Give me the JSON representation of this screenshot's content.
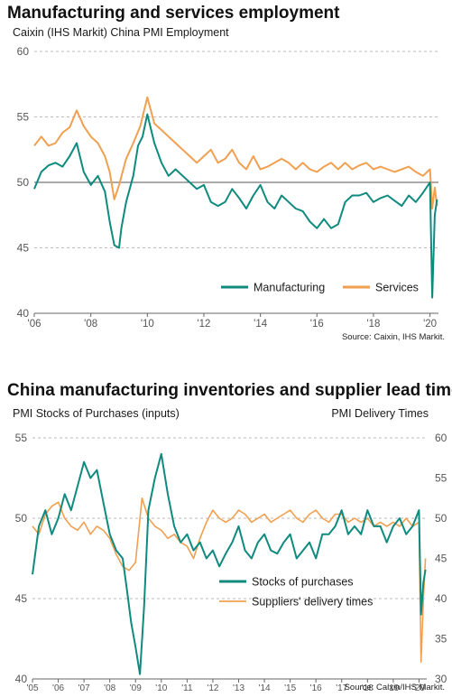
{
  "charts": [
    {
      "title": "Manufacturing and services employment",
      "subtitle": "Caixin (IHS Markit) China PMI Employment",
      "source": "Source: Caixin, IHS Markit.",
      "colors": {
        "manufacturing": "#0f8a7e",
        "services": "#f0a050",
        "grid": "#bbbbbb",
        "axis": "#666666"
      }
    },
    {
      "title": "China manufacturing inventories and supplier lead times",
      "left_axis_label": "PMI Stocks of Purchases (inputs)",
      "right_axis_label": "PMI Delivery Times",
      "source": "Source: Caixin/IHS Markit.",
      "colors": {
        "stocks": "#0f8a7e",
        "delivery": "#f0a050",
        "grid": "#bbbbbb",
        "axis": "#666666"
      }
    }
  ],
  "chart_data": [
    {
      "type": "line",
      "title": "Manufacturing and services employment",
      "ylim": [
        40,
        60
      ],
      "yticks": [
        40,
        45,
        50,
        55,
        60
      ],
      "xlim": [
        2006.0,
        2020.3
      ],
      "xticks": [
        2006,
        2008,
        2010,
        2012,
        2014,
        2016,
        2018,
        2020
      ],
      "xtick_labels": [
        "'06",
        "'08",
        "'10",
        "'12",
        "'14",
        "'16",
        "'18",
        "'20"
      ],
      "reference_line": 50,
      "grid": true,
      "legend_position": "bottom-right",
      "series": [
        {
          "name": "Manufacturing",
          "x": [
            2006.0,
            2006.25,
            2006.5,
            2006.75,
            2007.0,
            2007.25,
            2007.5,
            2007.75,
            2008.0,
            2008.25,
            2008.5,
            2008.67,
            2008.83,
            2009.0,
            2009.08,
            2009.25,
            2009.5,
            2009.67,
            2009.83,
            2010.0,
            2010.25,
            2010.5,
            2010.75,
            2011.0,
            2011.25,
            2011.5,
            2011.75,
            2012.0,
            2012.25,
            2012.5,
            2012.75,
            2013.0,
            2013.25,
            2013.5,
            2013.75,
            2014.0,
            2014.25,
            2014.5,
            2014.75,
            2015.0,
            2015.25,
            2015.5,
            2015.75,
            2016.0,
            2016.25,
            2016.5,
            2016.75,
            2017.0,
            2017.25,
            2017.5,
            2017.75,
            2018.0,
            2018.25,
            2018.5,
            2018.75,
            2019.0,
            2019.25,
            2019.5,
            2019.75,
            2020.0,
            2020.08,
            2020.17,
            2020.25
          ],
          "values": [
            49.5,
            50.8,
            51.3,
            51.5,
            51.2,
            52.0,
            53.0,
            50.8,
            49.8,
            50.5,
            49.3,
            47.0,
            45.2,
            45.0,
            46.5,
            48.5,
            50.5,
            52.8,
            53.5,
            55.2,
            53.0,
            51.5,
            50.5,
            51.0,
            50.5,
            50.0,
            49.5,
            49.8,
            48.5,
            48.2,
            48.5,
            49.5,
            48.8,
            48.0,
            49.0,
            49.8,
            48.5,
            48.0,
            49.0,
            48.5,
            48.0,
            47.8,
            47.0,
            46.5,
            47.2,
            46.5,
            46.8,
            48.5,
            49.0,
            49.0,
            49.2,
            48.5,
            48.8,
            49.0,
            48.6,
            48.2,
            49.0,
            48.5,
            49.2,
            50.0,
            41.2,
            47.5,
            48.7
          ]
        },
        {
          "name": "Services",
          "x": [
            2006.0,
            2006.25,
            2006.5,
            2006.75,
            2007.0,
            2007.25,
            2007.5,
            2007.75,
            2008.0,
            2008.25,
            2008.5,
            2008.67,
            2008.83,
            2009.0,
            2009.25,
            2009.5,
            2009.75,
            2010.0,
            2010.25,
            2010.5,
            2010.75,
            2011.0,
            2011.25,
            2011.5,
            2011.75,
            2012.0,
            2012.25,
            2012.5,
            2012.75,
            2013.0,
            2013.25,
            2013.5,
            2013.75,
            2014.0,
            2014.25,
            2014.5,
            2014.75,
            2015.0,
            2015.25,
            2015.5,
            2015.75,
            2016.0,
            2016.25,
            2016.5,
            2016.75,
            2017.0,
            2017.25,
            2017.5,
            2017.75,
            2018.0,
            2018.25,
            2018.5,
            2018.75,
            2019.0,
            2019.25,
            2019.5,
            2019.75,
            2020.0,
            2020.08,
            2020.17,
            2020.25
          ],
          "values": [
            52.8,
            53.5,
            52.8,
            53.0,
            53.8,
            54.2,
            55.5,
            54.3,
            53.5,
            53.0,
            52.0,
            50.8,
            48.7,
            49.8,
            51.8,
            53.0,
            54.3,
            56.5,
            54.5,
            54.0,
            53.5,
            53.0,
            52.5,
            52.0,
            51.5,
            52.0,
            52.5,
            51.5,
            51.8,
            52.5,
            51.5,
            51.0,
            52.0,
            51.0,
            51.2,
            51.5,
            51.8,
            51.5,
            51.0,
            51.5,
            51.0,
            50.8,
            51.2,
            51.5,
            51.0,
            51.5,
            51.0,
            51.3,
            51.5,
            51.0,
            51.2,
            51.0,
            50.8,
            51.0,
            51.2,
            50.8,
            50.5,
            51.0,
            48.0,
            49.6,
            48.2
          ]
        }
      ]
    },
    {
      "type": "line",
      "title": "China manufacturing inventories and supplier lead times",
      "ylabel_left": "PMI Stocks of Purchases (inputs)",
      "ylabel_right": "PMI Delivery Times",
      "ylim_left": [
        40,
        55
      ],
      "yticks_left": [
        40,
        45,
        50,
        55
      ],
      "ylim_right": [
        30,
        60
      ],
      "yticks_right": [
        30,
        35,
        40,
        45,
        50,
        55,
        60
      ],
      "xlim": [
        2005.0,
        2020.3
      ],
      "xticks": [
        2005,
        2006,
        2007,
        2008,
        2009,
        2010,
        2011,
        2012,
        2013,
        2014,
        2015,
        2016,
        2017,
        2018,
        2019,
        2020
      ],
      "xtick_labels": [
        "'05",
        "'06",
        "'07",
        "'08",
        "'09",
        "'10",
        "'11",
        "'12",
        "'13",
        "'14",
        "'15",
        "'16",
        "'17",
        "'18",
        "'19",
        "'20"
      ],
      "grid": true,
      "legend_position": "bottom-right",
      "series": [
        {
          "name": "Stocks of purchases",
          "axis": "left",
          "x": [
            2005.0,
            2005.25,
            2005.5,
            2005.75,
            2006.0,
            2006.25,
            2006.5,
            2006.75,
            2007.0,
            2007.25,
            2007.5,
            2007.75,
            2008.0,
            2008.25,
            2008.5,
            2008.67,
            2008.83,
            2009.0,
            2009.17,
            2009.33,
            2009.5,
            2009.75,
            2010.0,
            2010.25,
            2010.5,
            2010.75,
            2011.0,
            2011.25,
            2011.5,
            2011.75,
            2012.0,
            2012.25,
            2012.5,
            2012.75,
            2013.0,
            2013.25,
            2013.5,
            2013.75,
            2014.0,
            2014.25,
            2014.5,
            2014.75,
            2015.0,
            2015.25,
            2015.5,
            2015.75,
            2016.0,
            2016.25,
            2016.5,
            2016.75,
            2017.0,
            2017.25,
            2017.5,
            2017.75,
            2018.0,
            2018.25,
            2018.5,
            2018.75,
            2019.0,
            2019.25,
            2019.5,
            2019.75,
            2020.0,
            2020.08,
            2020.17,
            2020.25
          ],
          "values": [
            46.5,
            49.5,
            50.5,
            49.0,
            50.0,
            51.5,
            50.5,
            52.0,
            53.5,
            52.5,
            53.0,
            51.0,
            49.0,
            48.0,
            47.5,
            45.5,
            43.5,
            42.0,
            40.3,
            44.5,
            50.5,
            52.5,
            54.0,
            51.5,
            49.5,
            48.5,
            49.0,
            48.0,
            48.5,
            47.5,
            48.0,
            47.0,
            47.8,
            48.5,
            49.5,
            48.0,
            47.5,
            48.5,
            49.0,
            48.0,
            47.8,
            48.5,
            49.0,
            47.5,
            48.0,
            48.5,
            47.5,
            49.0,
            49.0,
            49.5,
            50.5,
            49.0,
            49.5,
            49.0,
            50.5,
            49.5,
            49.5,
            48.5,
            49.5,
            50.0,
            49.0,
            49.5,
            50.5,
            44.0,
            46.0,
            46.8
          ]
        },
        {
          "name": "Suppliers' delivery times",
          "axis": "right",
          "x": [
            2005.0,
            2005.25,
            2005.5,
            2005.75,
            2006.0,
            2006.25,
            2006.5,
            2006.75,
            2007.0,
            2007.25,
            2007.5,
            2007.75,
            2008.0,
            2008.25,
            2008.5,
            2008.75,
            2009.0,
            2009.25,
            2009.5,
            2009.75,
            2010.0,
            2010.25,
            2010.5,
            2010.75,
            2011.0,
            2011.25,
            2011.5,
            2011.75,
            2012.0,
            2012.25,
            2012.5,
            2012.75,
            2013.0,
            2013.25,
            2013.5,
            2013.75,
            2014.0,
            2014.25,
            2014.5,
            2014.75,
            2015.0,
            2015.25,
            2015.5,
            2015.75,
            2016.0,
            2016.25,
            2016.5,
            2016.75,
            2017.0,
            2017.25,
            2017.5,
            2017.75,
            2018.0,
            2018.25,
            2018.5,
            2018.75,
            2019.0,
            2019.25,
            2019.5,
            2019.75,
            2020.0,
            2020.08,
            2020.17,
            2020.25
          ],
          "values": [
            49.0,
            48.0,
            50.5,
            51.5,
            52.0,
            50.0,
            49.0,
            48.5,
            49.5,
            48.0,
            49.0,
            48.5,
            47.5,
            45.5,
            44.0,
            43.5,
            44.5,
            52.5,
            50.0,
            49.0,
            48.5,
            47.5,
            48.0,
            47.0,
            46.5,
            45.0,
            47.5,
            49.5,
            51.0,
            50.0,
            49.5,
            50.0,
            51.0,
            50.5,
            49.5,
            50.0,
            50.5,
            49.5,
            50.0,
            50.5,
            51.0,
            50.0,
            49.5,
            50.5,
            51.0,
            50.0,
            49.5,
            50.5,
            50.5,
            49.5,
            50.0,
            49.5,
            50.0,
            49.0,
            49.5,
            49.0,
            49.5,
            49.0,
            50.0,
            49.0,
            49.5,
            32.1,
            40.0,
            45.0
          ]
        }
      ]
    }
  ]
}
